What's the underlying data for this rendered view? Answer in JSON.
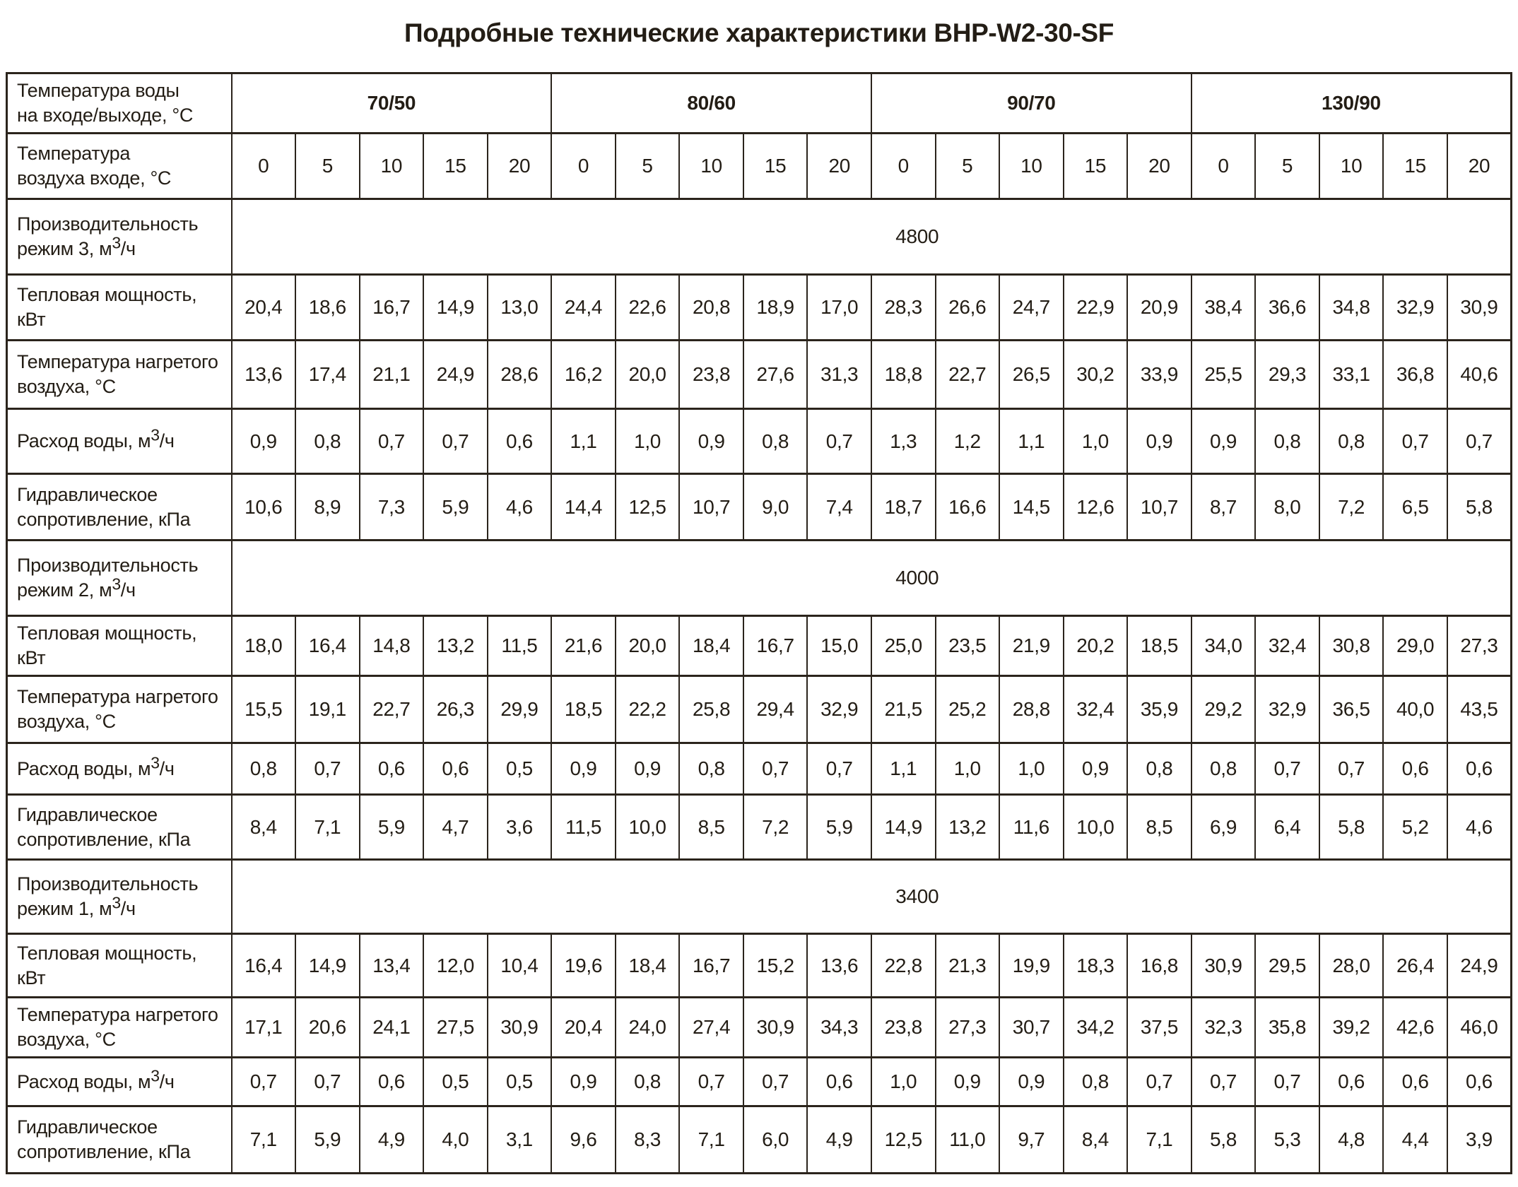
{
  "title": "Подробные технические характеристики BHP-W2-30-SF",
  "table": {
    "col_headers": {
      "water_label_lines": [
        "Температура воды",
        "на входе/выходе, °С"
      ],
      "water_temps": [
        "70/50",
        "80/60",
        "90/70",
        "130/90"
      ],
      "air_label_lines": [
        "Температура",
        "воздуха входе, °С"
      ],
      "air_temps": [
        "0",
        "5",
        "10",
        "15",
        "20"
      ]
    },
    "row_labels": {
      "heat_power": "Тепловая мощность, кВт",
      "heated_air_lines": [
        "Температура нагретого",
        "воздуха, °С"
      ],
      "water_flow_pre": "Расход воды, м",
      "water_flow_sup": "3",
      "water_flow_post": "/ч",
      "hydraulic_lines": [
        "Гидравлическое",
        "сопротивление, кПа"
      ]
    },
    "sections": [
      {
        "mode": "3",
        "capacity_line1": "Производительность",
        "capacity_line2_pre": "режим 3, м",
        "capacity_sup": "3",
        "capacity_line2_post": "/ч",
        "capacity_value": "4800",
        "heat_power": [
          "20,4",
          "18,6",
          "16,7",
          "14,9",
          "13,0",
          "24,4",
          "22,6",
          "20,8",
          "18,9",
          "17,0",
          "28,3",
          "26,6",
          "24,7",
          "22,9",
          "20,9",
          "38,4",
          "36,6",
          "34,8",
          "32,9",
          "30,9"
        ],
        "heated_air": [
          "13,6",
          "17,4",
          "21,1",
          "24,9",
          "28,6",
          "16,2",
          "20,0",
          "23,8",
          "27,6",
          "31,3",
          "18,8",
          "22,7",
          "26,5",
          "30,2",
          "33,9",
          "25,5",
          "29,3",
          "33,1",
          "36,8",
          "40,6"
        ],
        "water_flow": [
          "0,9",
          "0,8",
          "0,7",
          "0,7",
          "0,6",
          "1,1",
          "1,0",
          "0,9",
          "0,8",
          "0,7",
          "1,3",
          "1,2",
          "1,1",
          "1,0",
          "0,9",
          "0,9",
          "0,8",
          "0,8",
          "0,7",
          "0,7"
        ],
        "hydraulic": [
          "10,6",
          "8,9",
          "7,3",
          "5,9",
          "4,6",
          "14,4",
          "12,5",
          "10,7",
          "9,0",
          "7,4",
          "18,7",
          "16,6",
          "14,5",
          "12,6",
          "10,7",
          "8,7",
          "8,0",
          "7,2",
          "6,5",
          "5,8"
        ]
      },
      {
        "mode": "2",
        "capacity_line1": "Производительность",
        "capacity_line2_pre": "режим 2, м",
        "capacity_sup": "3",
        "capacity_line2_post": "/ч",
        "capacity_value": "4000",
        "heat_power": [
          "18,0",
          "16,4",
          "14,8",
          "13,2",
          "11,5",
          "21,6",
          "20,0",
          "18,4",
          "16,7",
          "15,0",
          "25,0",
          "23,5",
          "21,9",
          "20,2",
          "18,5",
          "34,0",
          "32,4",
          "30,8",
          "29,0",
          "27,3"
        ],
        "heated_air": [
          "15,5",
          "19,1",
          "22,7",
          "26,3",
          "29,9",
          "18,5",
          "22,2",
          "25,8",
          "29,4",
          "32,9",
          "21,5",
          "25,2",
          "28,8",
          "32,4",
          "35,9",
          "29,2",
          "32,9",
          "36,5",
          "40,0",
          "43,5"
        ],
        "water_flow": [
          "0,8",
          "0,7",
          "0,6",
          "0,6",
          "0,5",
          "0,9",
          "0,9",
          "0,8",
          "0,7",
          "0,7",
          "1,1",
          "1,0",
          "1,0",
          "0,9",
          "0,8",
          "0,8",
          "0,7",
          "0,7",
          "0,6",
          "0,6"
        ],
        "hydraulic": [
          "8,4",
          "7,1",
          "5,9",
          "4,7",
          "3,6",
          "11,5",
          "10,0",
          "8,5",
          "7,2",
          "5,9",
          "14,9",
          "13,2",
          "11,6",
          "10,0",
          "8,5",
          "6,9",
          "6,4",
          "5,8",
          "5,2",
          "4,6"
        ]
      },
      {
        "mode": "1",
        "capacity_line1": "Производительность",
        "capacity_line2_pre": "режим 1, м",
        "capacity_sup": "3",
        "capacity_line2_post": "/ч",
        "capacity_value": "3400",
        "heat_power": [
          "16,4",
          "14,9",
          "13,4",
          "12,0",
          "10,4",
          "19,6",
          "18,4",
          "16,7",
          "15,2",
          "13,6",
          "22,8",
          "21,3",
          "19,9",
          "18,3",
          "16,8",
          "30,9",
          "29,5",
          "28,0",
          "26,4",
          "24,9"
        ],
        "heated_air": [
          "17,1",
          "20,6",
          "24,1",
          "27,5",
          "30,9",
          "20,4",
          "24,0",
          "27,4",
          "30,9",
          "34,3",
          "23,8",
          "27,3",
          "30,7",
          "34,2",
          "37,5",
          "32,3",
          "35,8",
          "39,2",
          "42,6",
          "46,0"
        ],
        "water_flow": [
          "0,7",
          "0,7",
          "0,6",
          "0,5",
          "0,5",
          "0,9",
          "0,8",
          "0,7",
          "0,7",
          "0,6",
          "1,0",
          "0,9",
          "0,9",
          "0,8",
          "0,7",
          "0,7",
          "0,7",
          "0,6",
          "0,6",
          "0,6"
        ],
        "hydraulic": [
          "7,1",
          "5,9",
          "4,9",
          "4,0",
          "3,1",
          "9,6",
          "8,3",
          "7,1",
          "6,0",
          "4,9",
          "12,5",
          "11,0",
          "9,7",
          "8,4",
          "7,1",
          "5,8",
          "5,3",
          "4,8",
          "4,4",
          "3,9"
        ]
      }
    ]
  }
}
